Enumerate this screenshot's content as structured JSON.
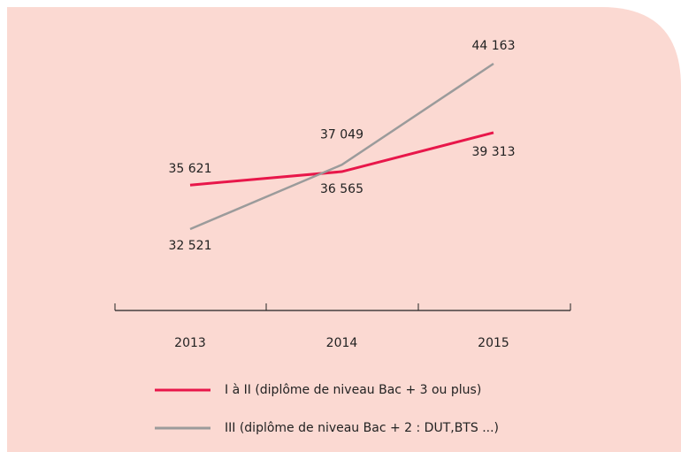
{
  "chart_data": {
    "type": "line",
    "categories": [
      "2013",
      "2014",
      "2015"
    ],
    "series": [
      {
        "name": "I à II (diplôme de niveau Bac + 3 ou plus)",
        "color": "#e8174a",
        "values": [
          35621,
          36565,
          39313
        ],
        "value_labels": [
          "35 621",
          "36 565",
          "39 313"
        ]
      },
      {
        "name": "III (diplôme de niveau Bac + 2 : DUT,BTS ...)",
        "color": "#9b9b9b",
        "values": [
          32521,
          37049,
          44163
        ],
        "value_labels": [
          "32 521",
          "37 049",
          "44 163"
        ]
      }
    ],
    "legend": "bottom"
  }
}
